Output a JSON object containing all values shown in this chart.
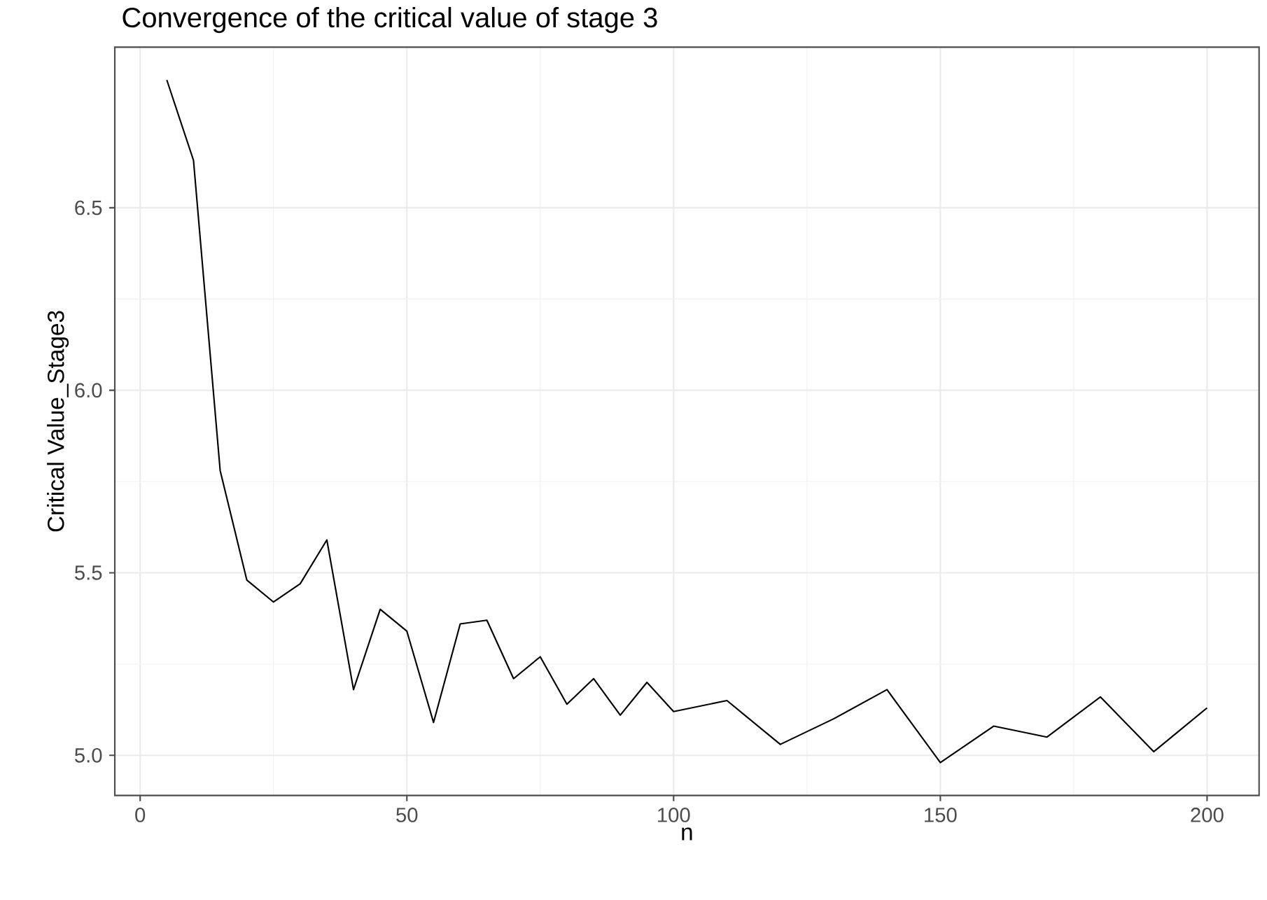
{
  "chart_data": {
    "type": "line",
    "title": "Convergence of the critical value of stage 3",
    "xlabel": "n",
    "ylabel": "Critical Value_Stage3",
    "x": [
      5,
      10,
      15,
      20,
      25,
      30,
      35,
      40,
      45,
      50,
      55,
      60,
      65,
      70,
      75,
      80,
      85,
      90,
      95,
      100,
      110,
      120,
      130,
      140,
      150,
      160,
      170,
      180,
      190,
      200
    ],
    "series": [
      {
        "color": "#000000",
        "values": [
          6.85,
          6.63,
          5.78,
          5.48,
          5.42,
          5.47,
          5.59,
          5.18,
          5.4,
          5.34,
          5.09,
          5.36,
          5.37,
          5.21,
          5.27,
          5.14,
          5.21,
          5.11,
          5.2,
          5.12,
          5.15,
          5.03,
          5.1,
          5.18,
          4.98,
          5.08,
          5.05,
          5.16,
          5.01,
          5.13
        ]
      }
    ],
    "xlim": [
      -4.75,
      209.75
    ],
    "ylim": [
      4.89,
      6.94
    ],
    "xticks": [
      0,
      50,
      100,
      150,
      200
    ],
    "yticks": [
      {
        "value": 5,
        "label": "5.0"
      },
      5.5,
      {
        "value": 6,
        "label": "6.0"
      },
      6.5
    ],
    "grid": true,
    "marker": "none",
    "line_style": "solid"
  }
}
